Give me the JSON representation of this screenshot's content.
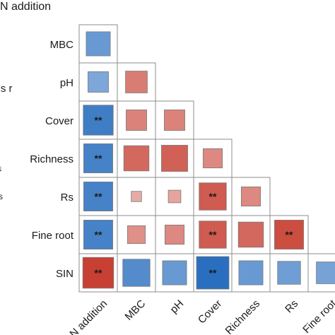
{
  "chart_data": {
    "type": "heatmap",
    "subtype": "lower-triangle correlation matrix (square size and color encode correlation)",
    "title": "N addition",
    "legend_fragments": [
      "'s r"
    ],
    "row_labels": [
      "MBC",
      "pH",
      "Cover",
      "Richness",
      "Rs",
      "Fine root",
      "SIN"
    ],
    "col_labels": [
      "N addition",
      "MBC",
      "pH",
      "Cover",
      "Richness",
      "Rs",
      "Fine root"
    ],
    "significance_marker": "**",
    "color_scale": {
      "negative": "#2a6fbf",
      "zero": "#ffffff",
      "positive": "#c43325"
    },
    "values": [
      [
        -0.55
      ],
      [
        -0.4,
        0.45
      ],
      [
        -0.85,
        0.4,
        0.4
      ],
      [
        -0.8,
        0.6,
        0.65,
        0.35
      ],
      [
        -0.8,
        0.1,
        0.15,
        0.7,
        0.35
      ],
      [
        -0.8,
        0.3,
        0.35,
        0.7,
        0.6,
        0.8
      ],
      [
        0.9,
        -0.7,
        -0.55,
        -1.0,
        -0.55,
        -0.5,
        -0.45
      ]
    ],
    "significant": [
      [
        false
      ],
      [
        false,
        false
      ],
      [
        true,
        false,
        false
      ],
      [
        true,
        false,
        false,
        false
      ],
      [
        true,
        false,
        false,
        true,
        false
      ],
      [
        true,
        false,
        false,
        true,
        false,
        true
      ],
      [
        true,
        false,
        false,
        true,
        false,
        false,
        false
      ]
    ]
  }
}
